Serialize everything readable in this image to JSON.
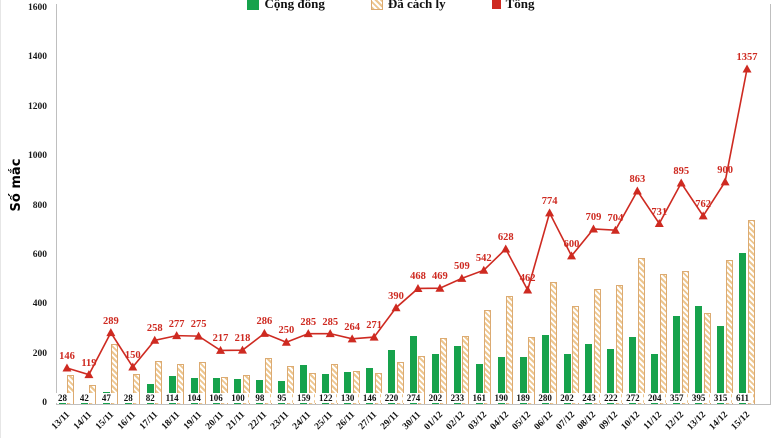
{
  "page": {
    "background": "#ffffff"
  },
  "chart_data": {
    "type": "bar",
    "variant": "grouped-bars-with-line-overlay",
    "title": "",
    "ylabel": "Số mắc",
    "xlabel": "",
    "ylim": [
      0,
      1600
    ],
    "yticks": [
      0,
      200,
      400,
      600,
      800,
      1000,
      1200,
      1400,
      1600
    ],
    "grid": false,
    "legend_position": "top-center",
    "categories": [
      "13/11",
      "14/11",
      "15/11",
      "16/11",
      "17/11",
      "18/11",
      "19/11",
      "20/11",
      "21/11",
      "22/11",
      "23/11",
      "24/11",
      "25/11",
      "26/11",
      "27/11",
      "29/11",
      "30/11",
      "01/12",
      "02/12",
      "03/12",
      "04/12",
      "05/12",
      "06/12",
      "07/12",
      "08/12",
      "09/12",
      "10/12",
      "11/12",
      "12/12",
      "13/12",
      "14/12",
      "15/12"
    ],
    "series": [
      {
        "name": "Cộng đồng",
        "type": "bar",
        "color": "#16a24c",
        "swatch": "green-square",
        "value_labels": "bottom",
        "values": [
          28,
          42,
          47,
          28,
          82,
          114,
          104,
          106,
          100,
          98,
          95,
          159,
          122,
          130,
          146,
          220,
          274,
          202,
          233,
          161,
          190,
          189,
          280,
          202,
          243,
          222,
          272,
          204,
          357,
          395,
          315,
          611
        ]
      },
      {
        "name": "Đã cách ly",
        "type": "bar",
        "color": "#edc68f",
        "pattern": "diagonal-hatch",
        "swatch": "tan-hatch",
        "value_labels": "none",
        "values": [
          118,
          77,
          242,
          122,
          176,
          163,
          171,
          111,
          118,
          188,
          155,
          126,
          163,
          134,
          125,
          170,
          194,
          267,
          276,
          381,
          438,
          273,
          494,
          398,
          466,
          482,
          591,
          527,
          538,
          367,
          585,
          746
        ]
      },
      {
        "name": "Tổng",
        "type": "line",
        "color": "#ce2a21",
        "marker": "triangle-up",
        "swatch": "red-marker",
        "value_labels": "above-points",
        "values": [
          146,
          119,
          289,
          150,
          258,
          277,
          275,
          217,
          218,
          286,
          250,
          285,
          285,
          264,
          271,
          390,
          468,
          469,
          509,
          542,
          628,
          462,
          774,
          600,
          709,
          704,
          863,
          731,
          895,
          762,
          900,
          1357
        ]
      }
    ]
  }
}
